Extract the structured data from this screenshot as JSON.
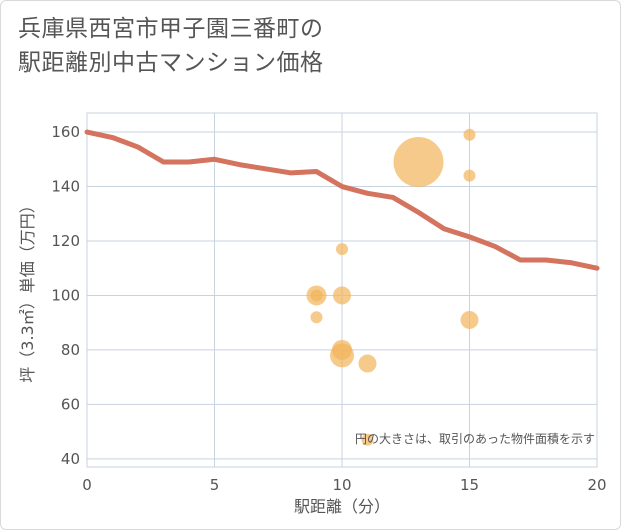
{
  "title_line1": "兵庫県西宮市甲子園三番町の",
  "title_line2": "駅距離別中古マンション価格",
  "chart_data": {
    "type": "scatter",
    "xlabel": "駅距離（分）",
    "ylabel": "坪（3.3㎡）単価（万円）",
    "xlim": [
      0,
      20
    ],
    "ylim": [
      37,
      167
    ],
    "xticks": [
      0,
      5,
      10,
      15,
      20
    ],
    "yticks": [
      40,
      60,
      80,
      100,
      120,
      140,
      160
    ],
    "grid": true,
    "note": "円の大きさは、取引のあった物件面積を示す",
    "line_color": "#d4735e",
    "bubble_color": "#f2b45a",
    "line": {
      "x": [
        0,
        1,
        2,
        3,
        4,
        5,
        6,
        7,
        8,
        9,
        10,
        11,
        12,
        13,
        14,
        15,
        16,
        17,
        18,
        19,
        20
      ],
      "y": [
        160,
        158,
        154.5,
        149,
        149,
        150,
        148,
        146.5,
        145,
        145.5,
        140,
        137.5,
        136,
        130.5,
        124.5,
        121.5,
        118,
        113,
        113,
        112,
        110
      ]
    },
    "points": [
      {
        "x": 9,
        "y": 100,
        "size": 10
      },
      {
        "x": 9,
        "y": 100,
        "size": 6
      },
      {
        "x": 9,
        "y": 92,
        "size": 6
      },
      {
        "x": 10,
        "y": 117,
        "size": 6
      },
      {
        "x": 10,
        "y": 100,
        "size": 9
      },
      {
        "x": 10,
        "y": 80,
        "size": 10
      },
      {
        "x": 10,
        "y": 78,
        "size": 12
      },
      {
        "x": 11,
        "y": 75,
        "size": 9
      },
      {
        "x": 11,
        "y": 47,
        "size": 6
      },
      {
        "x": 13,
        "y": 149,
        "size": 25
      },
      {
        "x": 15,
        "y": 159,
        "size": 6
      },
      {
        "x": 15,
        "y": 144,
        "size": 6
      },
      {
        "x": 15,
        "y": 91,
        "size": 9
      }
    ]
  }
}
